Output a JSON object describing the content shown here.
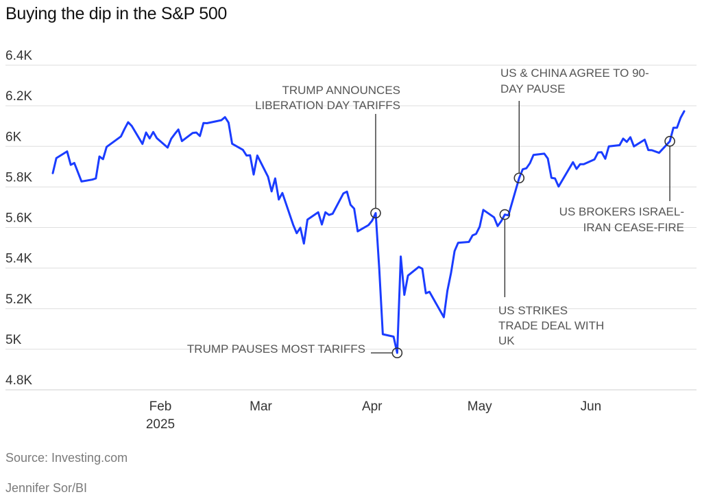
{
  "chart_data": {
    "type": "line",
    "title": "Buying the dip in the S&P 500",
    "ylim": [
      4800,
      6400
    ],
    "yticks": [
      {
        "value": 6400,
        "label": "6.4K"
      },
      {
        "value": 6200,
        "label": "6.2K"
      },
      {
        "value": 6000,
        "label": "6K"
      },
      {
        "value": 5800,
        "label": "5.8K"
      },
      {
        "value": 5600,
        "label": "5.6K"
      },
      {
        "value": 5400,
        "label": "5.4K"
      },
      {
        "value": 5200,
        "label": "5.2K"
      },
      {
        "value": 5000,
        "label": "5K"
      },
      {
        "value": 4800,
        "label": "4.8K"
      }
    ],
    "xlim": [
      "2025-01-02",
      "2025-06-27"
    ],
    "xticks": [
      {
        "date": "2025-02-01",
        "label": "Feb",
        "sublabel": "2025"
      },
      {
        "date": "2025-03-01",
        "label": "Mar",
        "sublabel": ""
      },
      {
        "date": "2025-04-01",
        "label": "Apr",
        "sublabel": ""
      },
      {
        "date": "2025-05-01",
        "label": "May",
        "sublabel": ""
      },
      {
        "date": "2025-06-01",
        "label": "Jun",
        "sublabel": ""
      }
    ],
    "grid": true,
    "line_color": "#1a3cff",
    "series": [
      {
        "x": [
          "2025-01-02",
          "2025-01-03",
          "2025-01-06",
          "2025-01-07",
          "2025-01-08",
          "2025-01-10",
          "2025-01-13",
          "2025-01-14",
          "2025-01-15",
          "2025-01-16",
          "2025-01-17",
          "2025-01-21",
          "2025-01-22",
          "2025-01-23",
          "2025-01-24",
          "2025-01-27",
          "2025-01-28",
          "2025-01-29",
          "2025-01-30",
          "2025-01-31",
          "2025-02-03",
          "2025-02-04",
          "2025-02-05",
          "2025-02-06",
          "2025-02-07",
          "2025-02-10",
          "2025-02-11",
          "2025-02-12",
          "2025-02-13",
          "2025-02-14",
          "2025-02-18",
          "2025-02-19",
          "2025-02-20",
          "2025-02-21",
          "2025-02-24",
          "2025-02-25",
          "2025-02-26",
          "2025-02-27",
          "2025-02-28",
          "2025-03-03",
          "2025-03-04",
          "2025-03-05",
          "2025-03-06",
          "2025-03-07",
          "2025-03-10",
          "2025-03-11",
          "2025-03-12",
          "2025-03-13",
          "2025-03-14",
          "2025-03-17",
          "2025-03-18",
          "2025-03-19",
          "2025-03-20",
          "2025-03-21",
          "2025-03-24",
          "2025-03-25",
          "2025-03-26",
          "2025-03-27",
          "2025-03-28",
          "2025-03-31",
          "2025-04-01",
          "2025-04-02",
          "2025-04-03",
          "2025-04-04",
          "2025-04-07",
          "2025-04-08",
          "2025-04-09",
          "2025-04-10",
          "2025-04-11",
          "2025-04-14",
          "2025-04-15",
          "2025-04-16",
          "2025-04-17",
          "2025-04-21",
          "2025-04-22",
          "2025-04-23",
          "2025-04-24",
          "2025-04-25",
          "2025-04-28",
          "2025-04-29",
          "2025-04-30",
          "2025-05-01",
          "2025-05-02",
          "2025-05-05",
          "2025-05-06",
          "2025-05-07",
          "2025-05-08",
          "2025-05-09",
          "2025-05-12",
          "2025-05-13",
          "2025-05-14",
          "2025-05-15",
          "2025-05-16",
          "2025-05-19",
          "2025-05-20",
          "2025-05-21",
          "2025-05-22",
          "2025-05-23",
          "2025-05-27",
          "2025-05-28",
          "2025-05-29",
          "2025-05-30",
          "2025-06-02",
          "2025-06-03",
          "2025-06-04",
          "2025-06-05",
          "2025-06-06",
          "2025-06-09",
          "2025-06-10",
          "2025-06-11",
          "2025-06-12",
          "2025-06-13",
          "2025-06-16",
          "2025-06-17",
          "2025-06-18",
          "2025-06-20",
          "2025-06-23",
          "2025-06-24",
          "2025-06-25",
          "2025-06-26",
          "2025-06-27"
        ],
        "y": [
          5868,
          5942,
          5975,
          5909,
          5918,
          5827,
          5836,
          5842,
          5950,
          5937,
          5997,
          6049,
          6086,
          6119,
          6101,
          6012,
          6068,
          6039,
          6071,
          6040,
          5994,
          6037,
          6061,
          6083,
          6026,
          6066,
          6068,
          6051,
          6115,
          6114,
          6129,
          6144,
          6117,
          6013,
          5983,
          5955,
          5956,
          5861,
          5955,
          5850,
          5778,
          5842,
          5738,
          5770,
          5614,
          5572,
          5599,
          5521,
          5639,
          5675,
          5615,
          5675,
          5662,
          5668,
          5768,
          5777,
          5712,
          5693,
          5581,
          5612,
          5633,
          5671,
          5397,
          5074,
          5062,
          4982,
          5457,
          5268,
          5363,
          5406,
          5397,
          5276,
          5283,
          5158,
          5288,
          5376,
          5484,
          5525,
          5529,
          5561,
          5569,
          5604,
          5687,
          5650,
          5607,
          5631,
          5664,
          5660,
          5844,
          5887,
          5892,
          5917,
          5958,
          5964,
          5940,
          5845,
          5842,
          5802,
          5922,
          5889,
          5912,
          5912,
          5936,
          5970,
          5971,
          5939,
          6000,
          6006,
          6038,
          6022,
          6045,
          6000,
          6033,
          5982,
          5981,
          5968,
          6025,
          6092,
          6092,
          6141,
          6173
        ]
      }
    ],
    "annotations": [
      {
        "text": [
          "TRUMP ANNOUNCES",
          "LIBERATION DAY TARIFFS"
        ],
        "date": "2025-04-02",
        "value": 5671
      },
      {
        "text": [
          "TRUMP PAUSES MOST TARIFFS"
        ],
        "date": "2025-04-08",
        "value": 4982
      },
      {
        "text": [
          "US STRIKES",
          "TRADE DEAL WITH",
          "UK"
        ],
        "date": "2025-05-08",
        "value": 5664
      },
      {
        "text": [
          "US & CHINA AGREE TO 90-",
          "DAY PAUSE"
        ],
        "date": "2025-05-12",
        "value": 5844
      },
      {
        "text": [
          "US BROKERS ISRAEL-",
          "IRAN CEASE-FIRE"
        ],
        "date": "2025-06-23",
        "value": 6025
      }
    ]
  },
  "footer": {
    "source": "Source: Investing.com",
    "credit": "Jennifer Sor/BI"
  }
}
